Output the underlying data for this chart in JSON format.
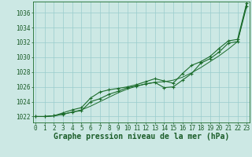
{
  "title": "Graphe pression niveau de la mer (hPa)",
  "hours": [
    0,
    1,
    2,
    3,
    4,
    5,
    6,
    7,
    8,
    9,
    10,
    11,
    12,
    13,
    14,
    15,
    16,
    17,
    18,
    19,
    20,
    21,
    22,
    23
  ],
  "line_smooth": [
    1022.0,
    1022.0,
    1022.1,
    1022.3,
    1022.6,
    1022.9,
    1023.4,
    1024.0,
    1024.6,
    1025.2,
    1025.7,
    1026.1,
    1026.4,
    1026.6,
    1026.7,
    1026.9,
    1027.3,
    1027.9,
    1028.6,
    1029.4,
    1030.2,
    1031.1,
    1032.1,
    1037.2
  ],
  "line_upper": [
    1022.0,
    1022.0,
    1022.1,
    1022.5,
    1022.9,
    1023.2,
    1024.5,
    1025.3,
    1025.6,
    1025.8,
    1026.0,
    1026.3,
    1026.7,
    1027.1,
    1026.8,
    1026.5,
    1027.8,
    1028.9,
    1029.4,
    1030.1,
    1031.2,
    1032.2,
    1032.4,
    1037.3
  ],
  "line_lower": [
    1022.0,
    1022.0,
    1022.1,
    1022.3,
    1022.6,
    1022.8,
    1024.0,
    1024.4,
    1025.0,
    1025.4,
    1025.9,
    1026.1,
    1026.4,
    1026.6,
    1025.9,
    1026.0,
    1026.9,
    1027.8,
    1029.2,
    1029.8,
    1030.7,
    1031.9,
    1032.1,
    1036.9
  ],
  "yticks": [
    1022,
    1024,
    1026,
    1028,
    1030,
    1032,
    1034,
    1036
  ],
  "ylim": [
    1021.2,
    1037.5
  ],
  "xlim": [
    -0.3,
    23.3
  ],
  "bg_color": "#cce8e4",
  "grid_color": "#99cccc",
  "line_color": "#1a6b2a",
  "title_color": "#1a5c28",
  "title_fontsize": 7.0,
  "tick_fontsize": 5.5
}
